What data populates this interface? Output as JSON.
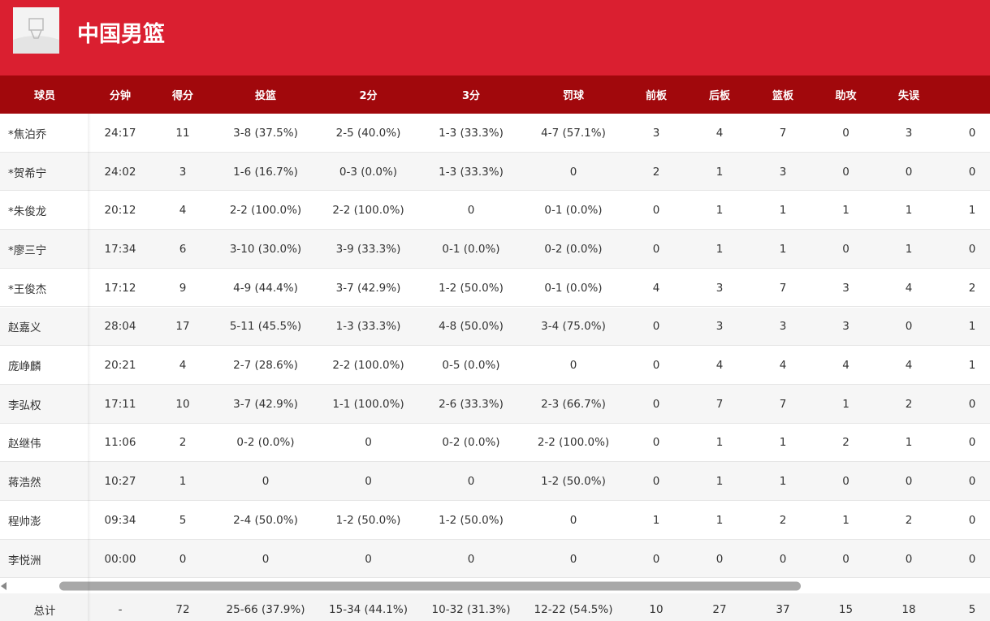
{
  "header": {
    "title": "中国男篮"
  },
  "table": {
    "columns": [
      "球员",
      "分钟",
      "得分",
      "投篮",
      "2分",
      "3分",
      "罚球",
      "前板",
      "后板",
      "篮板",
      "助攻",
      "失误",
      null
    ],
    "rows": [
      [
        "*焦泊乔",
        "24:17",
        "11",
        "3-8 (37.5%)",
        "2-5 (40.0%)",
        "1-3 (33.3%)",
        "4-7 (57.1%)",
        "3",
        "4",
        "7",
        "0",
        "3",
        "0"
      ],
      [
        "*贺希宁",
        "24:02",
        "3",
        "1-6 (16.7%)",
        "0-3 (0.0%)",
        "1-3 (33.3%)",
        "0",
        "2",
        "1",
        "3",
        "0",
        "0",
        "0"
      ],
      [
        "*朱俊龙",
        "20:12",
        "4",
        "2-2 (100.0%)",
        "2-2 (100.0%)",
        "0",
        "0-1 (0.0%)",
        "0",
        "1",
        "1",
        "1",
        "1",
        "1"
      ],
      [
        "*廖三宁",
        "17:34",
        "6",
        "3-10 (30.0%)",
        "3-9 (33.3%)",
        "0-1 (0.0%)",
        "0-2 (0.0%)",
        "0",
        "1",
        "1",
        "0",
        "1",
        "0"
      ],
      [
        "*王俊杰",
        "17:12",
        "9",
        "4-9 (44.4%)",
        "3-7 (42.9%)",
        "1-2 (50.0%)",
        "0-1 (0.0%)",
        "4",
        "3",
        "7",
        "3",
        "4",
        "2"
      ],
      [
        "赵嘉义",
        "28:04",
        "17",
        "5-11 (45.5%)",
        "1-3 (33.3%)",
        "4-8 (50.0%)",
        "3-4 (75.0%)",
        "0",
        "3",
        "3",
        "3",
        "0",
        "1"
      ],
      [
        "庞峥麟",
        "20:21",
        "4",
        "2-7 (28.6%)",
        "2-2 (100.0%)",
        "0-5 (0.0%)",
        "0",
        "0",
        "4",
        "4",
        "4",
        "4",
        "1"
      ],
      [
        "李弘权",
        "17:11",
        "10",
        "3-7 (42.9%)",
        "1-1 (100.0%)",
        "2-6 (33.3%)",
        "2-3 (66.7%)",
        "0",
        "7",
        "7",
        "1",
        "2",
        "0"
      ],
      [
        "赵继伟",
        "11:06",
        "2",
        "0-2 (0.0%)",
        "0",
        "0-2 (0.0%)",
        "2-2 (100.0%)",
        "0",
        "1",
        "1",
        "2",
        "1",
        "0"
      ],
      [
        "蒋浩然",
        "10:27",
        "1",
        "0",
        "0",
        "0",
        "1-2 (50.0%)",
        "0",
        "1",
        "1",
        "0",
        "0",
        "0"
      ],
      [
        "程帅澎",
        "09:34",
        "5",
        "2-4 (50.0%)",
        "1-2 (50.0%)",
        "1-2 (50.0%)",
        "0",
        "1",
        "1",
        "2",
        "1",
        "2",
        "0"
      ],
      [
        "李悦洲",
        "00:00",
        "0",
        "0",
        "0",
        "0",
        "0",
        "0",
        "0",
        "0",
        "0",
        "0",
        "0"
      ]
    ],
    "total": [
      "总计",
      "-",
      "72",
      "25-66 (37.9%)",
      "15-34 (44.1%)",
      "10-32 (31.3%)",
      "12-22 (54.5%)",
      "10",
      "27",
      "37",
      "15",
      "18",
      "5"
    ]
  }
}
